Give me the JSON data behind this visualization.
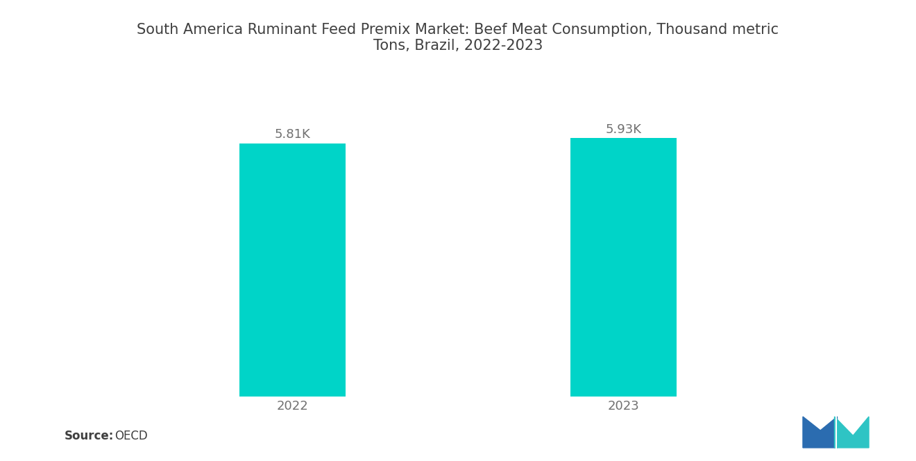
{
  "title": "South America Ruminant Feed Premix Market: Beef Meat Consumption, Thousand metric\nTons, Brazil, 2022-2023",
  "categories": [
    "2022",
    "2023"
  ],
  "values": [
    5810,
    5930
  ],
  "value_labels": [
    "5.81K",
    "5.93K"
  ],
  "bar_color": "#00D4C8",
  "background_color": "#ffffff",
  "title_fontsize": 15,
  "label_fontsize": 13,
  "tick_fontsize": 13,
  "source_fontsize": 12,
  "ylim": [
    0,
    7200
  ],
  "bar_width": 0.32,
  "title_color": "#404040",
  "tick_color": "#707070",
  "source_bold": "Source:",
  "source_normal": "  OECD",
  "logo_blue": "#2B6CB0",
  "logo_teal": "#2EC4C4"
}
